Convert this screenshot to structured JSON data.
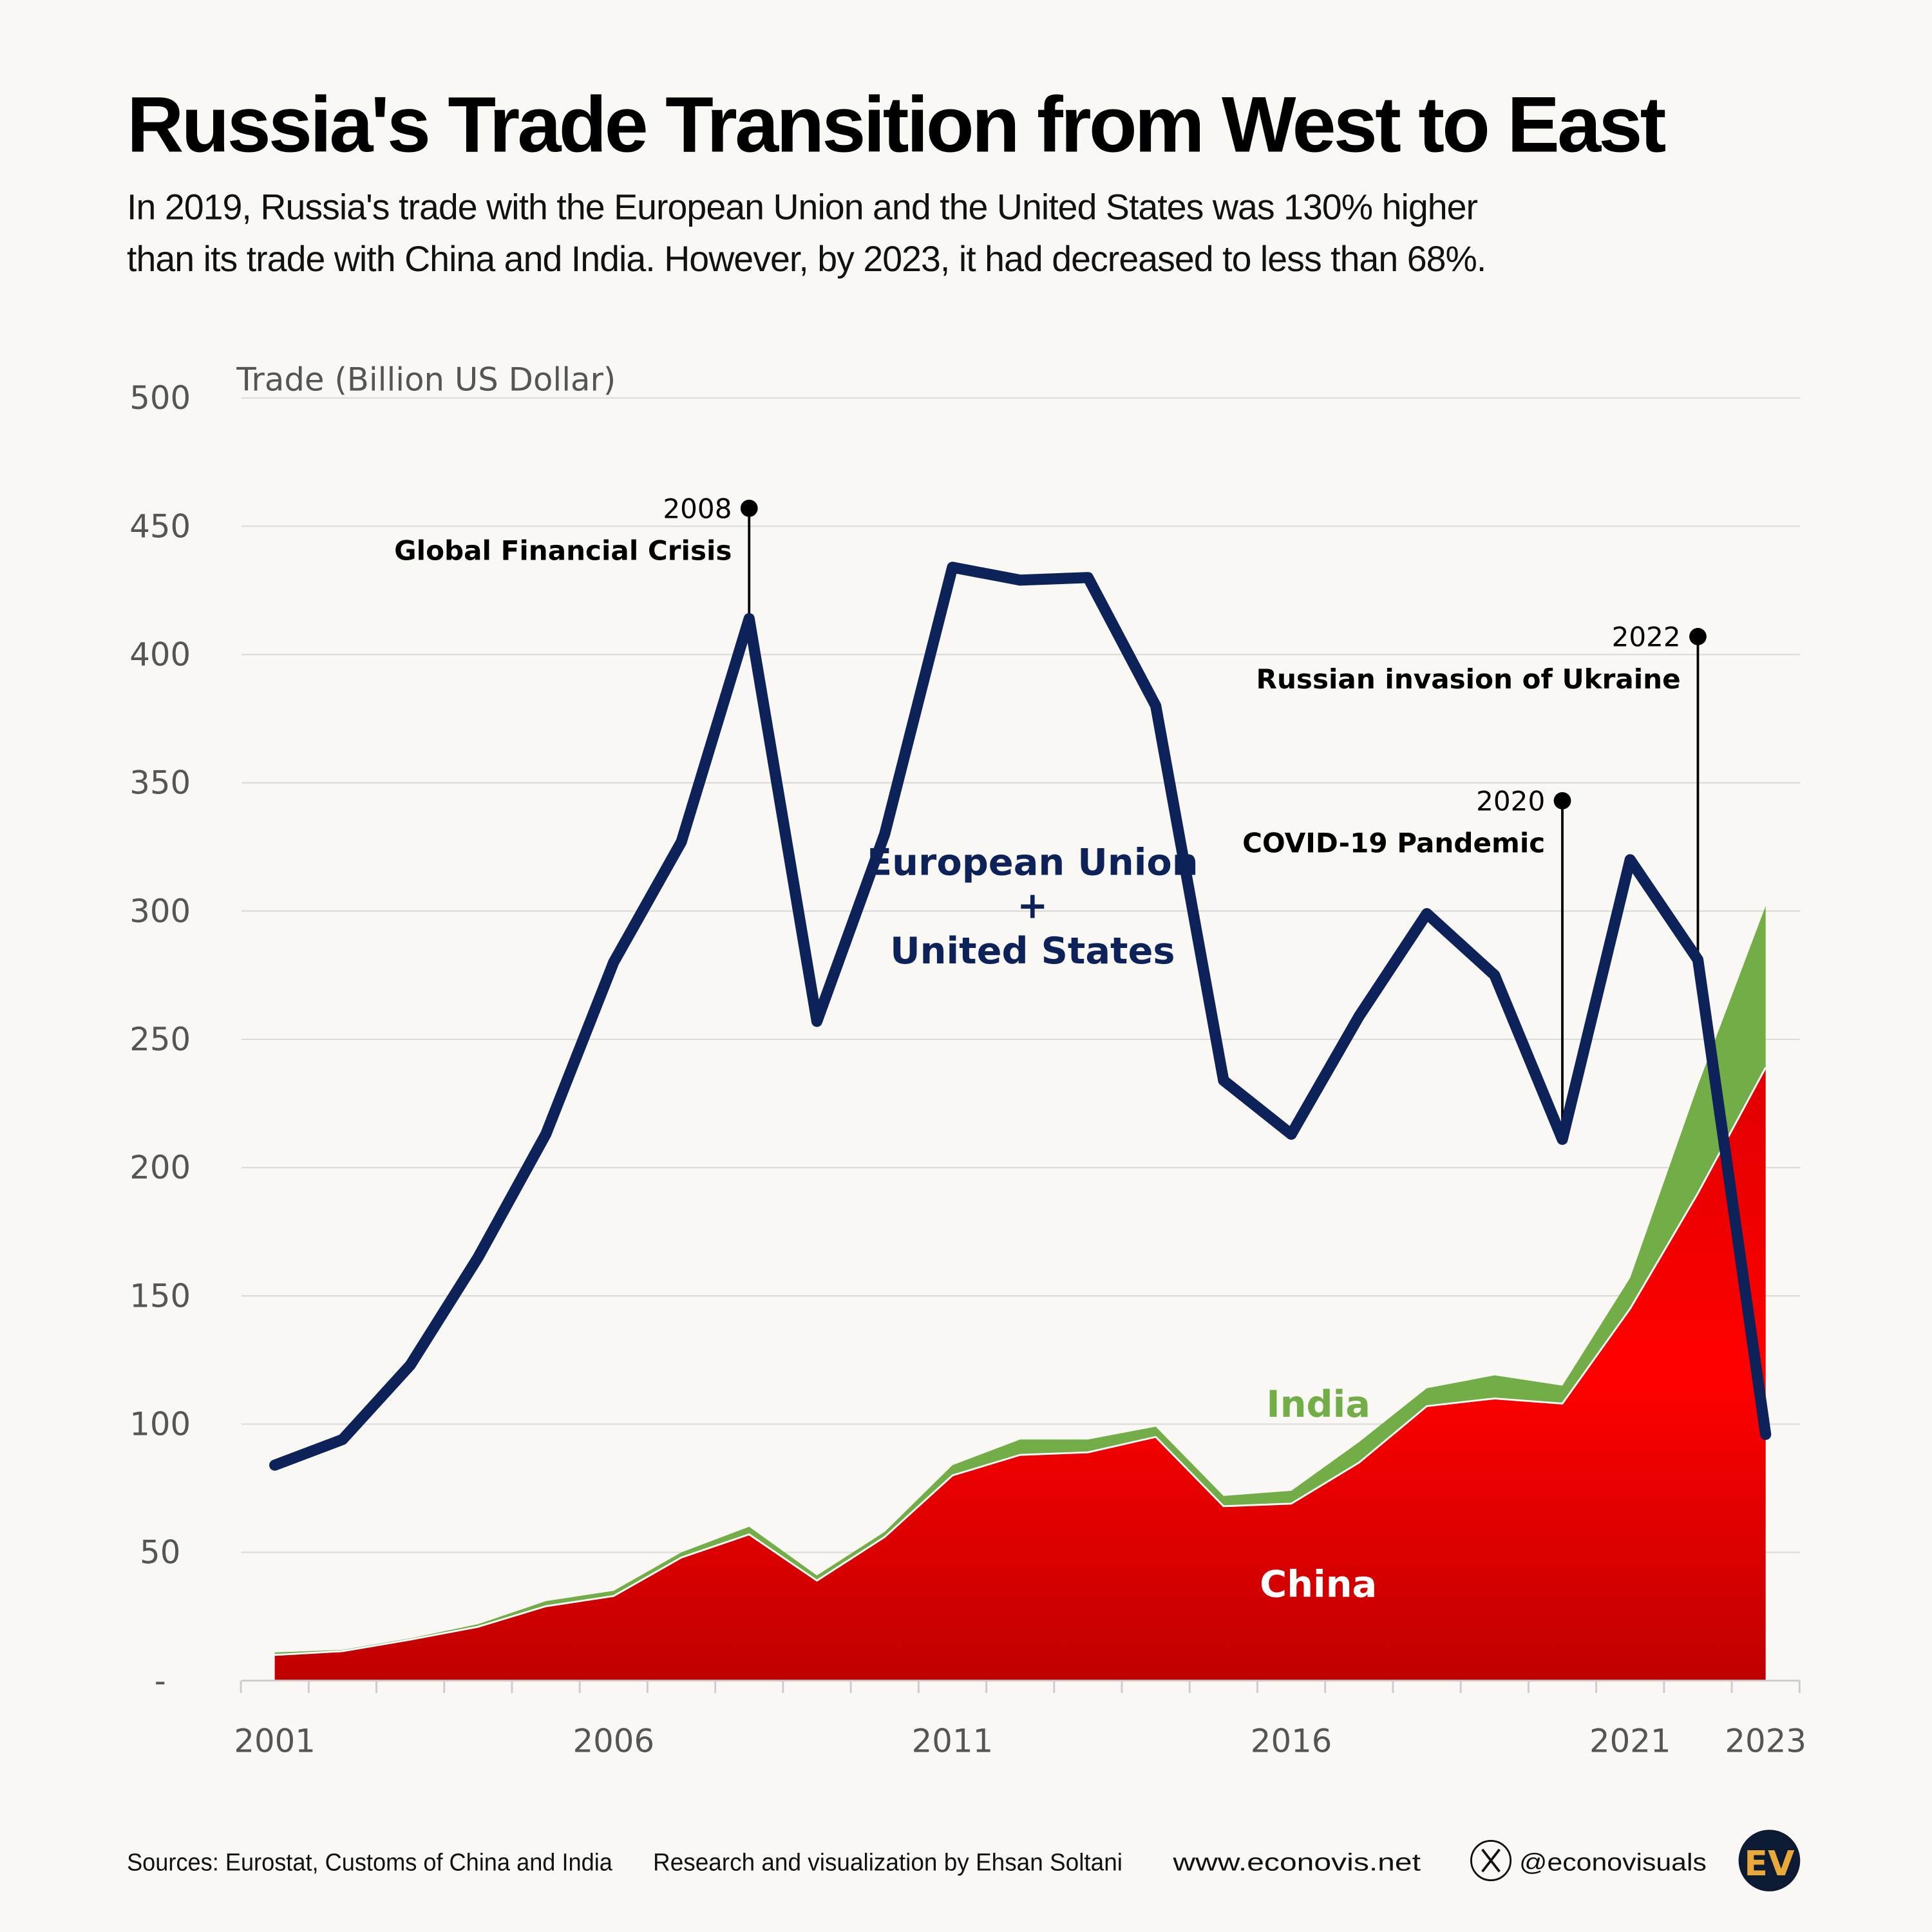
{
  "header": {
    "title": "Russia's Trade Transition from West to East",
    "subtitle_line1": "In 2019, Russia's trade with the European Union and the United States was 130% higher",
    "subtitle_line2": "than its trade with China and India. However, by 2023, it had decreased to less than 68%."
  },
  "chart_data": {
    "type": "area",
    "ylabel": "Trade (Billion US Dollar)",
    "ylim": [
      0,
      500
    ],
    "yticks": [
      0,
      50,
      100,
      150,
      200,
      250,
      300,
      350,
      400,
      450,
      500
    ],
    "ytick_labels": [
      "-",
      "50",
      "100",
      "150",
      "200",
      "250",
      "300",
      "350",
      "400",
      "450",
      "500"
    ],
    "x": [
      2001,
      2002,
      2003,
      2004,
      2005,
      2006,
      2007,
      2008,
      2009,
      2010,
      2011,
      2012,
      2013,
      2014,
      2015,
      2016,
      2017,
      2018,
      2019,
      2020,
      2021,
      2022,
      2023
    ],
    "xtick_labels": [
      "2001",
      "2006",
      "2011",
      "2016",
      "2021",
      "2023"
    ],
    "grid": true,
    "series": [
      {
        "name": "European Union + United States",
        "label_line1": "European Union",
        "label_plus": "+",
        "label_line2": "United States",
        "kind": "line",
        "color": "#0c2259",
        "values": [
          84,
          94,
          123,
          165,
          213,
          280,
          327,
          414,
          257,
          330,
          434,
          429,
          430,
          380,
          234,
          213,
          259,
          299,
          275,
          211,
          320,
          281,
          96
        ]
      },
      {
        "name": "China",
        "kind": "stacked-area",
        "color": "#ff0000",
        "values": [
          10,
          11.5,
          16,
          21,
          29,
          33,
          48,
          57,
          39,
          56,
          80,
          88,
          89,
          95,
          68,
          69,
          85,
          107,
          110,
          108,
          145,
          190,
          239
        ]
      },
      {
        "name": "India",
        "kind": "stacked-area",
        "color": "#72ad47",
        "values": [
          1,
          0.5,
          0.5,
          1,
          2,
          2,
          2,
          3,
          2,
          2,
          4,
          6,
          5,
          4,
          4,
          5,
          8,
          7,
          9,
          7,
          12,
          42,
          63
        ]
      }
    ],
    "annotations": [
      {
        "year_label": "2008",
        "text": "Global Financial Crisis",
        "x": 2008,
        "y_top": 457,
        "y_bottom": 414
      },
      {
        "year_label": "2020",
        "text": "COVID-19 Pandemic",
        "x": 2020,
        "y_top": 343,
        "y_bottom": 211
      },
      {
        "year_label": "2022",
        "text": "Russian invasion of Ukraine",
        "x": 2022,
        "y_top": 407,
        "y_bottom": 281
      }
    ]
  },
  "footer": {
    "sources": "Sources: Eurostat, Customs of China and India",
    "credit": "Research and visualization by Ehsan Soltani",
    "website": "www.econovis.net",
    "x_handle": "@econovisuals",
    "logo": "EV"
  }
}
